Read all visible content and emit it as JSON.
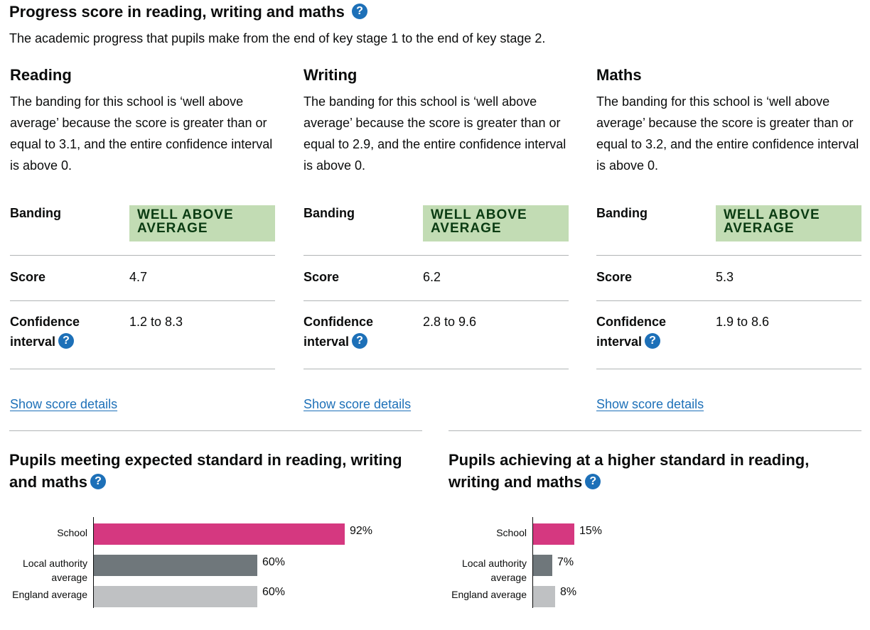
{
  "header": {
    "title": "Progress score in reading, writing and maths",
    "intro": "The academic progress that pupils make from the end of key stage 1 to the end of key stage 2."
  },
  "help_glyph": "?",
  "row_labels": {
    "banding": "Banding",
    "score": "Score",
    "ci_line1": "Confidence",
    "ci_line2": "interval"
  },
  "show_details_label": "Show score details",
  "subjects": [
    {
      "name": "Reading",
      "description": "The banding for this school is ‘well above average’ because the score is greater than or equal to 3.1, and the entire confidence interval is above 0.",
      "banding_line1": "WELL ABOVE",
      "banding_line2": "AVERAGE",
      "score": "4.7",
      "confidence_interval": "1.2 to 8.3"
    },
    {
      "name": "Writing",
      "description": "The banding for this school is ‘well above average’ because the score is greater than or equal to 2.9, and the entire confidence interval is above 0.",
      "banding_line1": "WELL ABOVE",
      "banding_line2": "AVERAGE",
      "score": "6.2",
      "confidence_interval": "2.8 to 9.6"
    },
    {
      "name": "Maths",
      "description": "The banding for this school is ‘well above average’ because the score is greater than or equal to 3.2, and the entire confidence interval is above 0.",
      "banding_line1": "WELL ABOVE",
      "banding_line2": "AVERAGE",
      "score": "5.3",
      "confidence_interval": "1.9 to 8.6"
    }
  ],
  "colors": {
    "school": "#d53880",
    "local_authority": "#6f777b",
    "england": "#bfc1c3",
    "link": "#1d70b8",
    "badge_bg": "#c2dcb4",
    "badge_text": "#0a3b12"
  },
  "charts": {
    "expected": {
      "title_line1": "Pupils meeting expected standard in reading, writing",
      "title_line2": "and maths",
      "bars": [
        {
          "label_line1": "School",
          "label_line2": "",
          "value_label": "92%"
        },
        {
          "label_line1": "Local authority",
          "label_line2": "average",
          "value_label": "60%"
        },
        {
          "label_line1": "England average",
          "label_line2": "",
          "value_label": "60%"
        }
      ]
    },
    "higher": {
      "title_line1": "Pupils achieving at a higher standard in reading,",
      "title_line2": "writing and maths",
      "bars": [
        {
          "label_line1": "School",
          "label_line2": "",
          "value_label": "15%"
        },
        {
          "label_line1": "Local authority",
          "label_line2": "average",
          "value_label": "7%"
        },
        {
          "label_line1": "England average",
          "label_line2": "",
          "value_label": "8%"
        }
      ]
    }
  },
  "chart_data": [
    {
      "type": "bar",
      "title": "Pupils meeting expected standard in reading, writing and maths",
      "categories": [
        "School",
        "Local authority average",
        "England average"
      ],
      "values": [
        92,
        60,
        60
      ],
      "unit": "%"
    },
    {
      "type": "bar",
      "title": "Pupils achieving at a higher standard in reading, writing and maths",
      "categories": [
        "School",
        "Local authority average",
        "England average"
      ],
      "values": [
        15,
        7,
        8
      ],
      "unit": "%"
    }
  ]
}
